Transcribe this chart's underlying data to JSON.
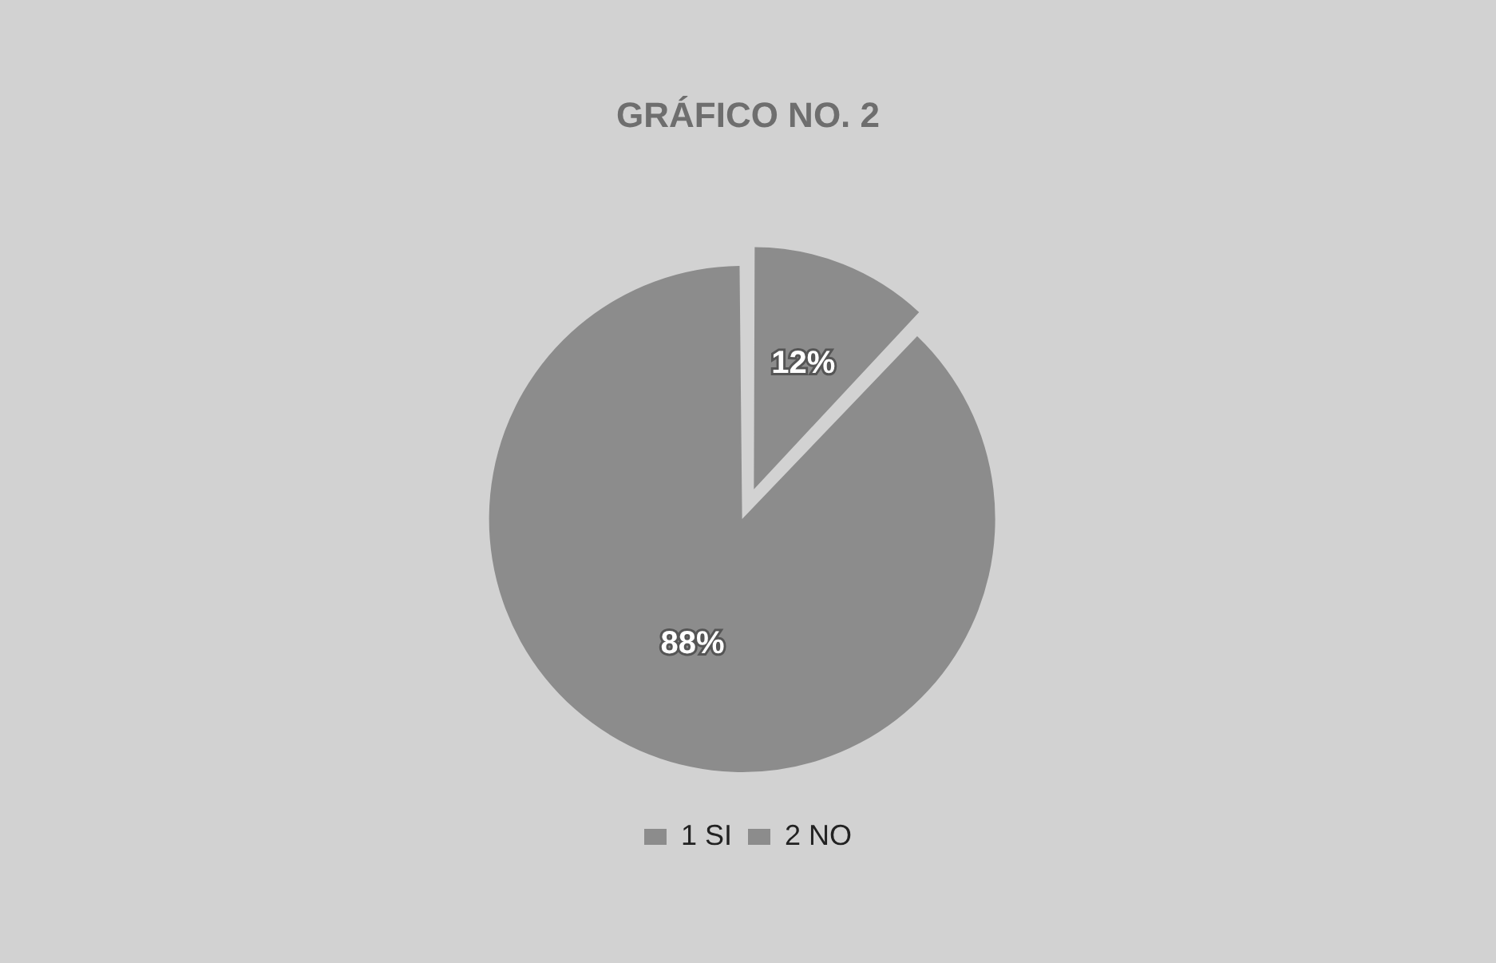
{
  "chart_data": {
    "type": "pie",
    "title": "GRÁFICO NO. 2",
    "categories": [
      "1 SI",
      "2 NO"
    ],
    "values": [
      12,
      88
    ],
    "value_labels": [
      "12%",
      "88%"
    ],
    "colors": [
      "#8c8c8c",
      "#8c8c8c"
    ],
    "legend": "bottom"
  }
}
